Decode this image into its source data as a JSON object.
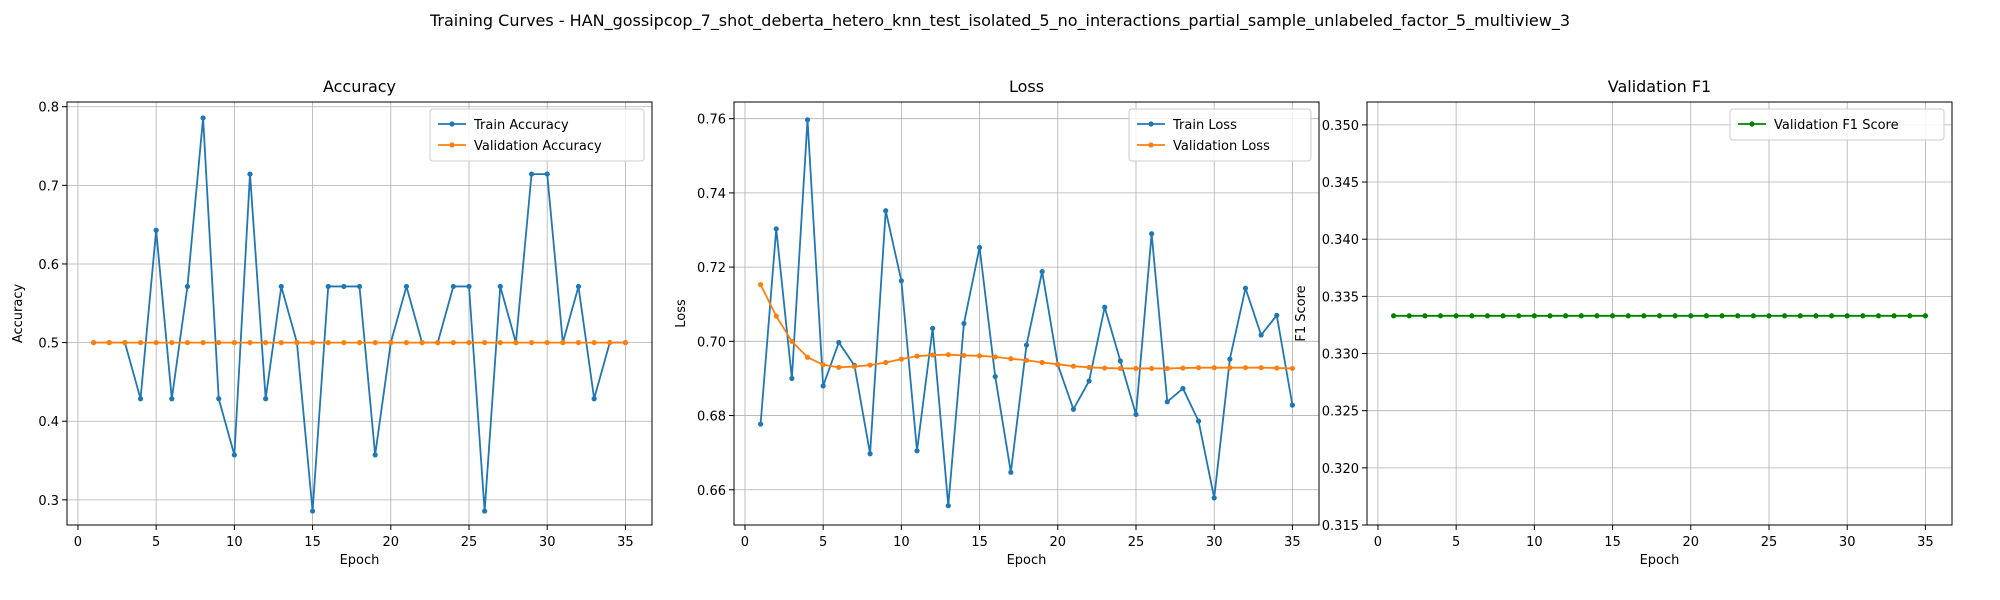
{
  "figure": {
    "suptitle": "Training Curves - HAN_gossipcop_7_shot_deberta_hetero_knn_test_isolated_5_no_interactions_partial_sample_unlabeled_factor_5_multiview_3"
  },
  "chart_data": [
    {
      "type": "line",
      "title": "Accuracy",
      "xlabel": "Epoch",
      "ylabel": "Accuracy",
      "xlim": [
        -0.7,
        36.7
      ],
      "ylim": [
        0.268,
        0.806
      ],
      "xticks": [
        0,
        5,
        10,
        15,
        20,
        25,
        30,
        35
      ],
      "yticks": [
        0.3,
        0.4,
        0.5,
        0.6,
        0.7,
        0.8
      ],
      "ytick_labels": [
        "0.3",
        "0.4",
        "0.5",
        "0.6",
        "0.7",
        "0.8"
      ],
      "grid": true,
      "legend_position": "upper right",
      "x": [
        1,
        2,
        3,
        4,
        5,
        6,
        7,
        8,
        9,
        10,
        11,
        12,
        13,
        14,
        15,
        16,
        17,
        18,
        19,
        20,
        21,
        22,
        23,
        24,
        25,
        26,
        27,
        28,
        29,
        30,
        31,
        32,
        33,
        34,
        35
      ],
      "series": [
        {
          "name": "Train Accuracy",
          "color": "#1f77b4",
          "values": [
            0.5,
            0.5,
            0.5,
            0.4286,
            0.6429,
            0.4286,
            0.5714,
            0.7857,
            0.4286,
            0.3571,
            0.7143,
            0.4286,
            0.5714,
            0.5,
            0.2857,
            0.5714,
            0.5714,
            0.5714,
            0.3571,
            0.5,
            0.5714,
            0.5,
            0.5,
            0.5714,
            0.5714,
            0.2857,
            0.5714,
            0.5,
            0.7143,
            0.7143,
            0.5,
            0.5714,
            0.4286,
            0.5,
            0.5
          ]
        },
        {
          "name": "Validation Accuracy",
          "color": "#ff7f0e",
          "values": [
            0.5,
            0.5,
            0.5,
            0.5,
            0.5,
            0.5,
            0.5,
            0.5,
            0.5,
            0.5,
            0.5,
            0.5,
            0.5,
            0.5,
            0.5,
            0.5,
            0.5,
            0.5,
            0.5,
            0.5,
            0.5,
            0.5,
            0.5,
            0.5,
            0.5,
            0.5,
            0.5,
            0.5,
            0.5,
            0.5,
            0.5,
            0.5,
            0.5,
            0.5,
            0.5
          ]
        }
      ]
    },
    {
      "type": "line",
      "title": "Loss",
      "xlabel": "Epoch",
      "ylabel": "Loss",
      "xlim": [
        -0.7,
        36.7
      ],
      "ylim": [
        0.6505,
        0.7645
      ],
      "xticks": [
        0,
        5,
        10,
        15,
        20,
        25,
        30,
        35
      ],
      "yticks": [
        0.66,
        0.68,
        0.7,
        0.72,
        0.74,
        0.76
      ],
      "ytick_labels": [
        "0.66",
        "0.68",
        "0.70",
        "0.72",
        "0.74",
        "0.76"
      ],
      "grid": true,
      "legend_position": "upper right",
      "x": [
        1,
        2,
        3,
        4,
        5,
        6,
        7,
        8,
        9,
        10,
        11,
        12,
        13,
        14,
        15,
        16,
        17,
        18,
        19,
        20,
        21,
        22,
        23,
        24,
        25,
        26,
        27,
        28,
        29,
        30,
        31,
        32,
        33,
        34,
        35
      ],
      "series": [
        {
          "name": "Train Loss",
          "color": "#1f77b4",
          "values": [
            0.6777,
            0.7303,
            0.69,
            0.7597,
            0.688,
            0.6997,
            0.6935,
            0.6697,
            0.7352,
            0.7163,
            0.6705,
            0.7035,
            0.6557,
            0.7048,
            0.7253,
            0.6905,
            0.6647,
            0.699,
            0.7188,
            0.6937,
            0.6817,
            0.6893,
            0.7092,
            0.6947,
            0.6803,
            0.729,
            0.6837,
            0.6873,
            0.6785,
            0.6578,
            0.6952,
            0.7143,
            0.7017,
            0.707,
            0.6828
          ]
        },
        {
          "name": "Validation Loss",
          "color": "#ff7f0e",
          "values": [
            0.7153,
            0.7068,
            0.7,
            0.6957,
            0.6937,
            0.693,
            0.6932,
            0.6936,
            0.6943,
            0.6952,
            0.696,
            0.6963,
            0.6964,
            0.6962,
            0.6961,
            0.6958,
            0.6953,
            0.6949,
            0.6943,
            0.6938,
            0.6933,
            0.693,
            0.6928,
            0.6927,
            0.6927,
            0.6927,
            0.6927,
            0.6928,
            0.6929,
            0.6929,
            0.6929,
            0.6929,
            0.6929,
            0.6928,
            0.6927
          ]
        }
      ]
    },
    {
      "type": "line",
      "title": "Validation F1",
      "xlabel": "Epoch",
      "ylabel": "F1 Score",
      "xlim": [
        -0.7,
        36.7
      ],
      "ylim": [
        0.315,
        0.352
      ],
      "xticks": [
        0,
        5,
        10,
        15,
        20,
        25,
        30,
        35
      ],
      "yticks": [
        0.315,
        0.32,
        0.325,
        0.33,
        0.335,
        0.34,
        0.345,
        0.35
      ],
      "ytick_labels": [
        "0.315",
        "0.320",
        "0.325",
        "0.330",
        "0.335",
        "0.340",
        "0.345",
        "0.350"
      ],
      "grid": true,
      "legend_position": "upper right",
      "x": [
        1,
        2,
        3,
        4,
        5,
        6,
        7,
        8,
        9,
        10,
        11,
        12,
        13,
        14,
        15,
        16,
        17,
        18,
        19,
        20,
        21,
        22,
        23,
        24,
        25,
        26,
        27,
        28,
        29,
        30,
        31,
        32,
        33,
        34,
        35
      ],
      "series": [
        {
          "name": "Validation F1 Score",
          "color": "#008000",
          "values": [
            0.3333,
            0.3333,
            0.3333,
            0.3333,
            0.3333,
            0.3333,
            0.3333,
            0.3333,
            0.3333,
            0.3333,
            0.3333,
            0.3333,
            0.3333,
            0.3333,
            0.3333,
            0.3333,
            0.3333,
            0.3333,
            0.3333,
            0.3333,
            0.3333,
            0.3333,
            0.3333,
            0.3333,
            0.3333,
            0.3333,
            0.3333,
            0.3333,
            0.3333,
            0.3333,
            0.3333,
            0.3333,
            0.3333,
            0.3333,
            0.3333
          ]
        }
      ]
    }
  ]
}
